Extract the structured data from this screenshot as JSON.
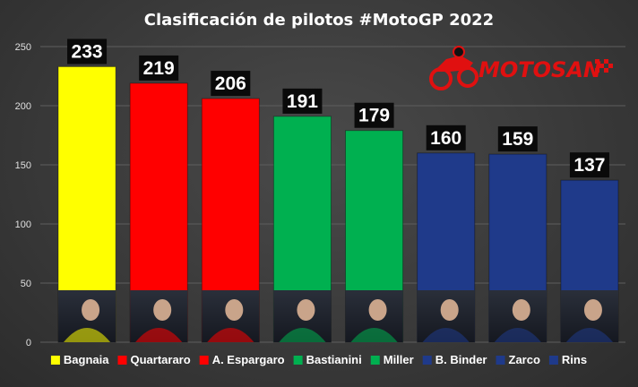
{
  "chart_data": {
    "type": "bar",
    "title": "Clasificación de pilotos #MotoGP 2022",
    "categories": [
      "Bagnaia",
      "Quartararo",
      "A. Espargaro",
      "Bastianini",
      "Miller",
      "B. Binder",
      "Zarco",
      "Rins"
    ],
    "values": [
      233,
      219,
      206,
      191,
      179,
      160,
      159,
      137
    ],
    "colors": [
      "#ffff00",
      "#ff0000",
      "#ff0000",
      "#00b050",
      "#00b050",
      "#1f3a8a",
      "#1f3a8a",
      "#1f3a8a"
    ],
    "ylim": [
      0,
      250
    ],
    "yticks": [
      0,
      50,
      100,
      150,
      200,
      250
    ],
    "grid": true,
    "legend": "bottom",
    "data_labels": true
  },
  "logo": {
    "text": "MOTOSAN",
    "color": "#e01010",
    "icon": "motorcycle-rider-icon"
  }
}
